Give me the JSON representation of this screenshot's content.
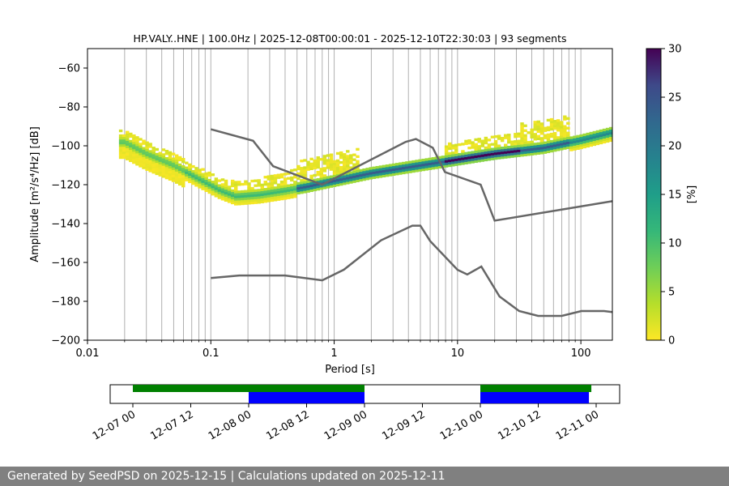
{
  "chart_data": [
    {
      "type": "heatmap",
      "title": "HP.VALY..HNE | 100.0Hz | 2025-12-08T00:00:01 - 2025-12-10T22:30:03 | 93 segments",
      "xlabel": "Period [s]",
      "ylabel": "Amplitude [m²/s⁴/Hz] [dB]",
      "xscale": "log",
      "xlim": [
        0.01,
        180
      ],
      "ylim": [
        -200,
        -50
      ],
      "grid": "vertical",
      "x_ticks": [
        0.01,
        0.1,
        1,
        10,
        100
      ],
      "x_tick_labels": [
        "0.01",
        "0.1",
        "1",
        "10",
        "100"
      ],
      "y_ticks": [
        -200,
        -180,
        -160,
        -140,
        -120,
        -100,
        -80,
        -60
      ],
      "y_tick_labels": [
        "−200",
        "−180",
        "−160",
        "−140",
        "−120",
        "−100",
        "−80",
        "−60"
      ],
      "colorbar": {
        "label": "[%]",
        "range": [
          0,
          30
        ],
        "ticks": [
          0,
          5,
          10,
          15,
          20,
          25,
          30
        ],
        "tick_labels": [
          "0",
          "5",
          "10",
          "15",
          "20",
          "25",
          "30"
        ],
        "colormap": "viridis_r"
      },
      "mode_curve": {
        "name": "mode",
        "x": [
          0.02,
          0.03,
          0.05,
          0.08,
          0.12,
          0.16,
          0.25,
          0.4,
          0.6,
          1,
          2,
          5,
          10,
          20,
          50,
          100,
          180
        ],
        "y": [
          -98,
          -104,
          -110,
          -117,
          -123,
          -126,
          -125,
          -123,
          -121,
          -118,
          -114,
          -110,
          -107,
          -104,
          -101,
          -97,
          -93
        ]
      },
      "nlnm": {
        "name": "NLNM",
        "x": [
          0.1,
          0.17,
          0.4,
          0.8,
          1.2,
          2.4,
          4.3,
          5,
          6,
          10,
          12,
          15.6,
          21.9,
          31.6,
          45,
          70,
          101,
          154,
          180
        ],
        "y": [
          -168,
          -166.7,
          -166.7,
          -169.2,
          -163.7,
          -148.6,
          -141.1,
          -141.1,
          -149,
          -163.8,
          -166.2,
          -162.1,
          -177.5,
          -185,
          -187.5,
          -187.5,
          -185,
          -185,
          -185.5
        ]
      },
      "nhnm": {
        "name": "NHNM",
        "x": [
          0.1,
          0.22,
          0.32,
          0.8,
          3.8,
          4.6,
          6.3,
          7.9,
          15.4,
          20,
          180
        ],
        "y": [
          -91.5,
          -97.4,
          -110.5,
          -120,
          -98,
          -96.5,
          -101,
          -113.5,
          -120,
          -138.5,
          -128.5
        ]
      }
    },
    {
      "type": "timeline",
      "tick_labels": [
        "12-07 00",
        "12-07 12",
        "12-08 00",
        "12-08 12",
        "12-09 00",
        "12-09 12",
        "12-10 00",
        "12-10 12",
        "12-11 00"
      ],
      "green_bars": [
        [
          "12-07 00",
          "12-09 00"
        ],
        [
          "12-10 00",
          "12-10 23"
        ]
      ],
      "blue_bars": [
        [
          "12-08 00",
          "12-09 00"
        ],
        [
          "12-10 00",
          "12-10 22:30"
        ]
      ],
      "colors": {
        "green": "#008000",
        "blue": "#0000ff"
      }
    }
  ],
  "footer": {
    "text": "Generated by SeedPSD on 2025-12-15 | Calculations updated on 2025-12-11"
  }
}
